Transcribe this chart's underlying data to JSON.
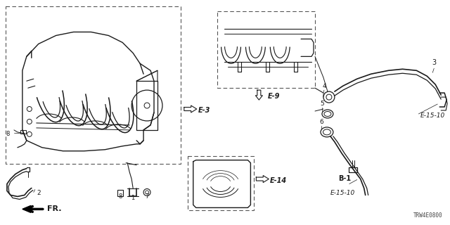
{
  "bg_color": "#ffffff",
  "diagram_code": "TRW4E0800",
  "line_color": "#1a1a1a",
  "text_color": "#1a1a1a",
  "labels": {
    "E3": "E-3",
    "E9": "E-9",
    "E14": "E-14",
    "E1510a": "E-15-10",
    "E1510b": "E-15-10",
    "B1": "B-1",
    "FR": "FR.",
    "part1": "1",
    "part2": "2",
    "part3": "3",
    "part4": "4",
    "part5": "5",
    "part6": "6",
    "part7": "7",
    "part8a": "8",
    "part8b": "8"
  }
}
